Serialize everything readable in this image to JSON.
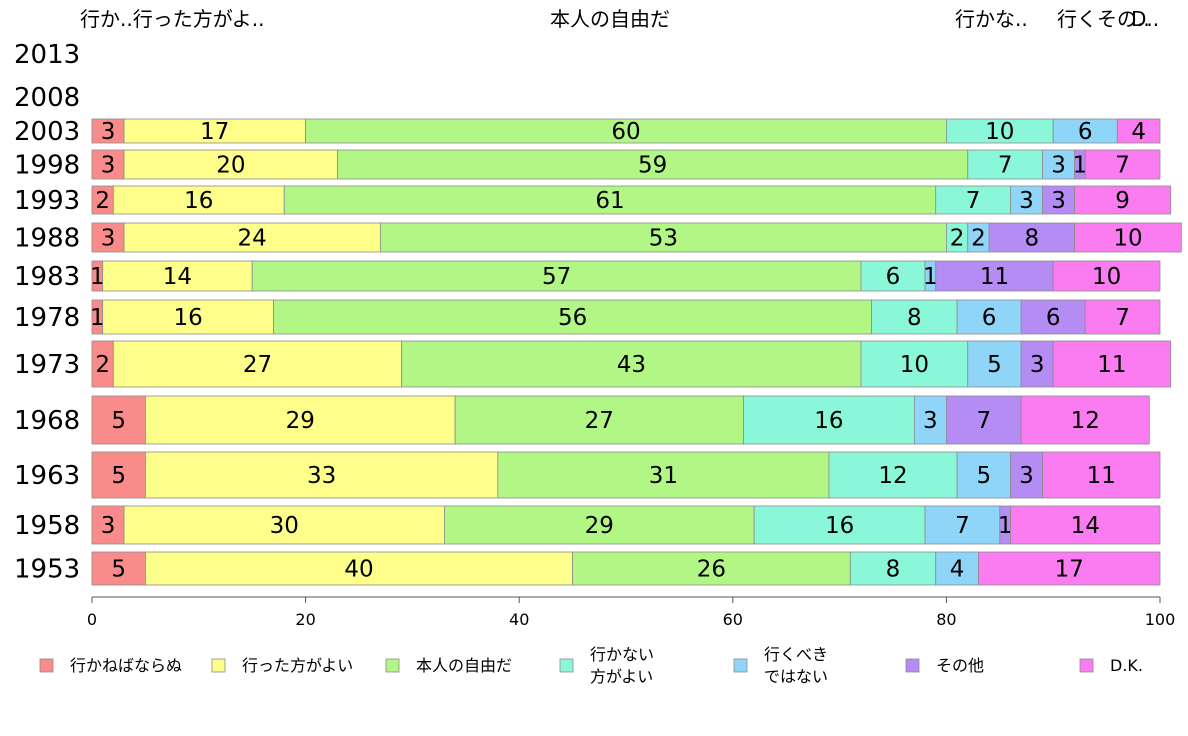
{
  "chart_data": {
    "type": "bar",
    "orientation": "horizontal-stacked-percent",
    "categories": [
      "2013",
      "2008",
      "2003",
      "1998",
      "1993",
      "1988",
      "1983",
      "1978",
      "1973",
      "1968",
      "1963",
      "1958",
      "1953"
    ],
    "series": [
      {
        "name": "行かねばならぬ",
        "color": "#f98b8b",
        "values": [
          null,
          null,
          3,
          3,
          2,
          3,
          1,
          1,
          2,
          5,
          5,
          3,
          5
        ]
      },
      {
        "name": "行った方がよい",
        "color": "#fefe8a",
        "values": [
          null,
          null,
          17,
          20,
          16,
          24,
          14,
          16,
          27,
          29,
          33,
          30,
          40
        ]
      },
      {
        "name": "本人の自由だ",
        "color": "#b2f785",
        "values": [
          null,
          null,
          60,
          59,
          61,
          53,
          57,
          56,
          43,
          27,
          31,
          29,
          26
        ]
      },
      {
        "name": "行かない\n方がよい",
        "color": "#8af8d8",
        "values": [
          null,
          null,
          10,
          7,
          7,
          2,
          6,
          8,
          10,
          16,
          12,
          16,
          8
        ]
      },
      {
        "name": "行くべき\nではない",
        "color": "#8fd5f8",
        "values": [
          null,
          null,
          6,
          3,
          3,
          2,
          1,
          6,
          5,
          3,
          5,
          7,
          4
        ]
      },
      {
        "name": "その他",
        "color": "#b58cf3",
        "values": [
          null,
          null,
          0,
          1,
          3,
          8,
          11,
          6,
          3,
          7,
          3,
          1,
          0
        ]
      },
      {
        "name": "D.K.",
        "color": "#fa7cf0",
        "values": [
          null,
          null,
          4,
          7,
          9,
          10,
          10,
          7,
          11,
          12,
          11,
          14,
          17
        ]
      }
    ],
    "xlim": [
      0,
      100
    ],
    "xticks": [
      "0",
      "20",
      "40",
      "60",
      "80",
      "100"
    ],
    "top_labels": [
      "行か..行った方がよ..",
      "本人の自由だ",
      "行かな..",
      "行くその..",
      "D.."
    ],
    "legend_position": "bottom"
  }
}
